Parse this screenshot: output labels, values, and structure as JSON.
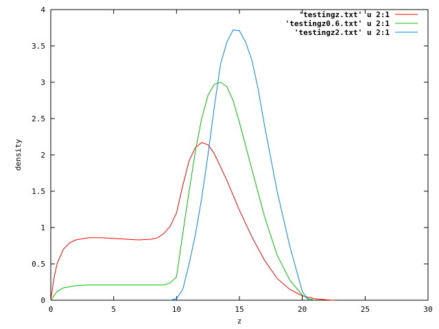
{
  "chart_data": {
    "type": "line",
    "title": "",
    "xlabel": "z",
    "ylabel": "density",
    "xlim": [
      0,
      30
    ],
    "ylim": [
      0,
      4
    ],
    "xticks": [
      0,
      5,
      10,
      15,
      20,
      25,
      30
    ],
    "yticks": [
      0,
      0.5,
      1,
      1.5,
      2,
      2.5,
      3,
      3.5,
      4
    ],
    "xtick_labels": [
      "0",
      "5",
      "10",
      "15",
      "20",
      "25",
      "30"
    ],
    "ytick_labels": [
      "0",
      "0.5",
      "1",
      "1.5",
      "2",
      "2.5",
      "3",
      "3.5",
      "4"
    ],
    "grid": false,
    "legend_position": "top-right",
    "series": [
      {
        "name": "'testingz.txt' u 2:1",
        "color": "#ff0000",
        "x": [
          0,
          0.25,
          0.5,
          1,
          1.5,
          2,
          3,
          4,
          5,
          6,
          7,
          8,
          8.5,
          9,
          9.5,
          10,
          10.5,
          11,
          11.5,
          12,
          12.5,
          13,
          14,
          15,
          16,
          17,
          18,
          19,
          20,
          21,
          22,
          22.5
        ],
        "y": [
          0,
          0.3,
          0.5,
          0.7,
          0.79,
          0.83,
          0.86,
          0.86,
          0.85,
          0.84,
          0.83,
          0.84,
          0.86,
          0.92,
          1.02,
          1.2,
          1.58,
          1.92,
          2.1,
          2.17,
          2.14,
          2.02,
          1.65,
          1.24,
          0.87,
          0.55,
          0.3,
          0.15,
          0.06,
          0.02,
          0.005,
          0
        ]
      },
      {
        "name": "'testingz0.6.txt' u 2:1",
        "color": "#00c000",
        "x": [
          0,
          0.5,
          1,
          2,
          3,
          4,
          5,
          6,
          7,
          8,
          9,
          9.5,
          10,
          10.5,
          11,
          11.5,
          12,
          12.5,
          13,
          13.5,
          14,
          14.5,
          15,
          16,
          17,
          18,
          19,
          20,
          20.5,
          21
        ],
        "y": [
          0,
          0.12,
          0.17,
          0.2,
          0.21,
          0.21,
          0.21,
          0.21,
          0.21,
          0.21,
          0.21,
          0.24,
          0.32,
          0.92,
          1.5,
          2.05,
          2.5,
          2.82,
          2.97,
          3,
          2.94,
          2.75,
          2.45,
          1.8,
          1.15,
          0.62,
          0.28,
          0.07,
          0.02,
          0
        ]
      },
      {
        "name": "'testingz2.txt' u 2:1",
        "color": "#0080ff",
        "x": [
          9.5,
          10,
          10.5,
          11,
          11.5,
          12,
          12.5,
          13,
          13.5,
          14,
          14.5,
          15,
          15.5,
          16,
          16.5,
          17,
          18,
          19,
          20,
          20.5
        ],
        "y": [
          0,
          0.02,
          0.15,
          0.5,
          0.9,
          1.4,
          2.0,
          2.65,
          3.25,
          3.55,
          3.72,
          3.71,
          3.55,
          3.3,
          2.9,
          2.4,
          1.5,
          0.75,
          0.12,
          0
        ]
      }
    ]
  }
}
